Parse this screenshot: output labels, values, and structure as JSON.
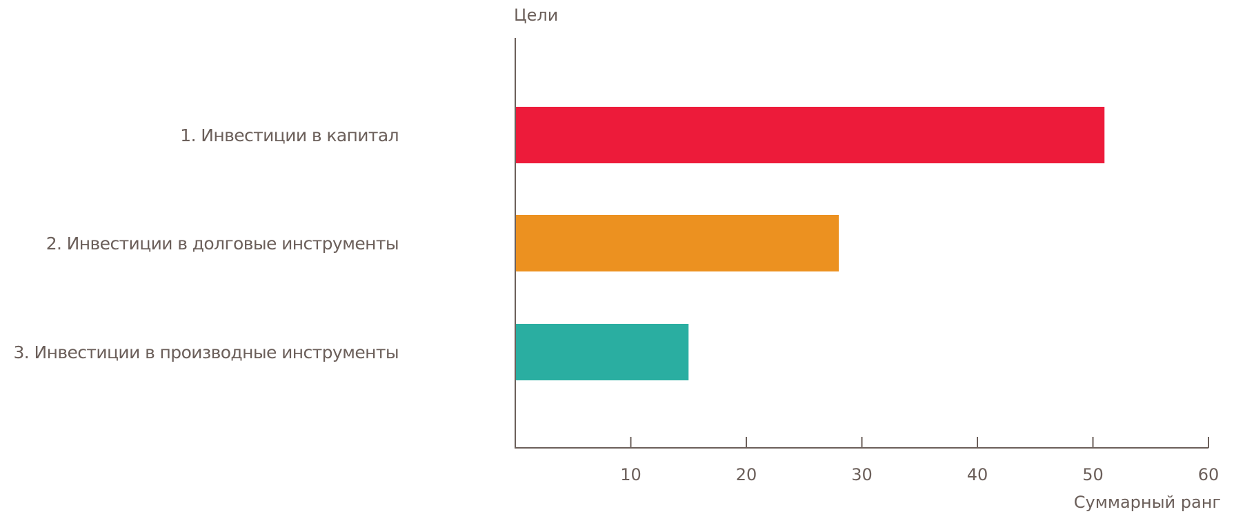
{
  "chart_data": {
    "type": "bar",
    "orientation": "horizontal",
    "title": "",
    "ylabel": "Цели",
    "xlabel": "Суммарный ранг",
    "categories": [
      "1. Инвестиции в капитал",
      "2. Инвестиции в долговые инструменты",
      "3. Инвестиции в производные инструменты"
    ],
    "values": [
      51,
      28,
      15
    ],
    "colors": [
      "#ed1b3a",
      "#ec9120",
      "#2aaea1"
    ],
    "xlim": [
      0,
      60
    ],
    "xticks": [
      10,
      20,
      30,
      40,
      50,
      60
    ],
    "grid": false,
    "legend": "none"
  }
}
